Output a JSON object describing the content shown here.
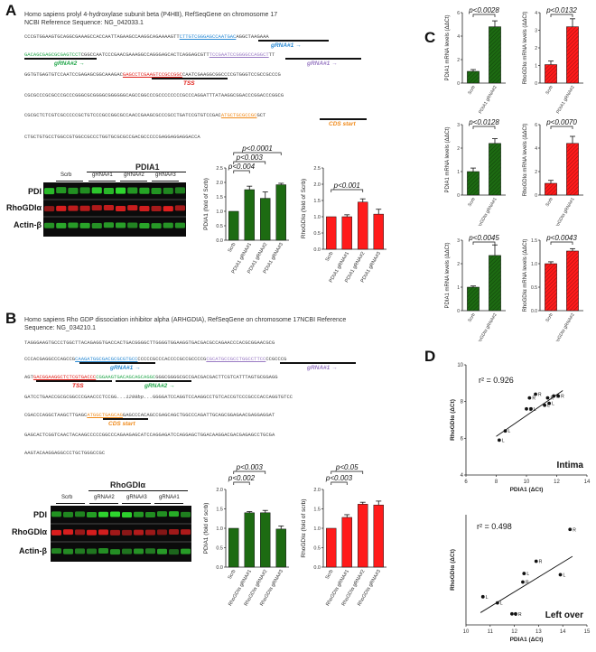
{
  "panels": {
    "A": "A",
    "B": "B",
    "C": "C",
    "D": "D"
  },
  "panelA": {
    "header1": "Homo sapiens prolyl 4-hydroxylase subunit beta (P4HB), RefSeqGene on chromosome 17",
    "header2": "NCBI Reference Sequence: NG_042033.1",
    "seq_lines": [
      "CCCGTGGAAGTGCAGGCGAAAGCCACCAATTAGAAGCCAAGGCAGAAAAGTT",
      "CTTGTCGGGAGCCAATGAC",
      "AGGCTAAGAAA",
      "GACAGCGAGCGCGAGTCCT",
      "CGGCCAATCCCGAACGAAAGGCCAGGGAGCACTCAGGAGCGTT",
      "TCCGAATCCGGGGCCAGGCT",
      "TT",
      "GGTGTGAGTGTCCAATCCGAGAGCGGCAAAGAC",
      "GAGCCTCGAAGTCCGCCGGC",
      "CAATCGAAGGCGGCCCCGTGGGTCCGCCGCCCG",
      "CGCGCCCGCGCCCGCCCGGGCGCGGGGCGGGGGGCAGCCGGCCCGCCCCCCCCGCCCAGGATTTATAAGGCGGACCCGGACCCGGCG",
      "CGCGCTCTCGTCGCCCCCGCTGTCCCGCCGGCGCCAACCGAAGCGCCCGCCTGATCCGTGTCCGAC",
      "ATGCTGCGCCGC",
      "GCT",
      "CTGCTGTGCCTGGCCGTGGCCGCCCTGGTGCGCGCCGACGCCCCCGAGGAGGAGGACCA"
    ],
    "gRNA1": "gRNA#1 →",
    "gRNA2": "gRNA#2 →",
    "gRNA1rev": "gRNA#1 →",
    "tss": "TSS",
    "cds": "CDS start",
    "blot_title": "PDIA1",
    "lanes": [
      "Scrb",
      "gRNA#1",
      "gRNA#2",
      "gRNA#3"
    ],
    "rows": [
      "PDI",
      "RhoGDIα",
      "Actin-β"
    ]
  },
  "panelB": {
    "header1": "Homo sapiens Rho GDP dissociation inhibitor alpha (ARHGDIA), RefSeqGene on chromosome 17NCBI Reference",
    "header2": "Sequence: NG_034210.1",
    "seq_lines": [
      "TAGGGAAGTGCCCTGGCTTACAGAGGTGACCACTGACGGGGCTTGGGGTGGAAGGTGACGACGCCAGAACCCACGCGGAACGCG",
      "CCCACGAGGCCCAGCCG",
      "CAAGATGGCGACGCGCGTGCC",
      "CCCCCGCCCACCCCGCCGCCCCG",
      "CGCATGCCGCCTGGCCTTCC",
      "CCGCCCG",
      "AGT",
      "GACGGAAGGCTCTCGTGACCC",
      "CGGAAGTGACAGCAGCAGGC",
      "GGGCGGGGCGCCGACGACGACTTCGTCATTTAGTGCGGAGG",
      "GATCCTGAACCGCGCGGCCCGAACCCTCCGG",
      "...1299bp...",
      "GGGGATCCAGGTCCAAGGCCTGTCACCGTCCCGCCCACCAGGTGTCC",
      "CGACCCAGGCTAAGCTTGAGC",
      "ATGGCTGAGCAG",
      "GAGCCCACAGCCGAGCAGCTGGCCCAGATTGCAGCGGAGAACGAGGAGGAT",
      "GAGCACTCGGTCAACTACAAGCCCCCGGCCCAGAAGAGCATCCAGGAGATCCAGGAGCTGGACAAGGACGACGAGAGCCTGCGA",
      "AAGTACAAGGAGGCCCTGCTGGGCCGC"
    ],
    "gRNA1": "gRNA#1 →",
    "gRNA2": "gRNA#2 →",
    "gRNA1rev": "gRNA#1 →",
    "tss": "TSS",
    "cds": "CDS start",
    "blot_title": "RhoGDIα",
    "lanes": [
      "Scrb",
      "gRNA#2",
      "gRNA#3",
      "gRNA#1"
    ],
    "rows": [
      "PDI",
      "RhoGDIα",
      "Actin-β"
    ]
  },
  "chart_data": [
    {
      "id": "A-left",
      "type": "bar",
      "categories": [
        "Scrb",
        "PDIA1 gRNA#1",
        "PDIA1 gRNA#2",
        "PDIA1 gRNA#3"
      ],
      "values": [
        1.0,
        1.75,
        1.45,
        1.92
      ],
      "errors": [
        0.0,
        0.12,
        0.22,
        0.05
      ],
      "ylabel": "PDIA1 (fold of Scrb)",
      "ylim": [
        0,
        2.5
      ],
      "yticks": [
        0.0,
        0.5,
        1.0,
        1.5,
        2.0,
        2.5
      ],
      "color": "#1d6b12",
      "annotations": [
        "p<0.0001",
        "p<0.003",
        "p<0.004"
      ]
    },
    {
      "id": "A-right",
      "type": "bar",
      "categories": [
        "Scrb",
        "PDIA1 gRNA#1",
        "PDIA1 gRNA#2",
        "PDIA1 gRNA#3"
      ],
      "values": [
        1.0,
        1.0,
        1.45,
        1.08
      ],
      "errors": [
        0.0,
        0.06,
        0.1,
        0.15
      ],
      "ylabel": "RhoGDIα (fold of Scrb)",
      "ylim": [
        0,
        2.5
      ],
      "yticks": [
        0.0,
        0.5,
        1.0,
        1.5,
        2.0,
        2.5
      ],
      "color": "#ff1b1b",
      "annotations": [
        "p<0.001"
      ]
    },
    {
      "id": "B-left",
      "type": "bar",
      "categories": [
        "Scrb",
        "RhoGDIα gRNA#1",
        "RhoGDIα gRNA#2",
        "RhoGDIα gRNA#3"
      ],
      "values": [
        1.0,
        1.4,
        1.4,
        0.98
      ],
      "errors": [
        0.0,
        0.03,
        0.06,
        0.08
      ],
      "ylabel": "PDIA1 (fold of scrb)",
      "ylim": [
        0,
        2.0
      ],
      "yticks": [
        0.0,
        0.5,
        1.0,
        1.5,
        2.0
      ],
      "color": "#1d6b12",
      "annotations": [
        "p<0.003",
        "p<0.002"
      ]
    },
    {
      "id": "B-right",
      "type": "bar",
      "categories": [
        "Scrb",
        "RhoGDIα gRNA#1",
        "RhoGDIα gRNA#2",
        "RhoGDIα gRNA#3"
      ],
      "values": [
        1.0,
        1.28,
        1.62,
        1.6
      ],
      "errors": [
        0.0,
        0.07,
        0.05,
        0.1
      ],
      "ylabel": "RhoGDIα (fold of scrb)",
      "ylim": [
        0,
        2.0
      ],
      "yticks": [
        0.0,
        0.5,
        1.0,
        1.5,
        2.0
      ],
      "color": "#ff1b1b",
      "annotations": [
        "p<0.05",
        "p<0.003"
      ]
    },
    {
      "id": "C-1",
      "type": "bar",
      "categories": [
        "Scrb",
        "PDIA1 gRNA#2"
      ],
      "values": [
        1.0,
        4.8
      ],
      "errors": [
        0.15,
        0.5
      ],
      "ylabel": "PDIA1 mRNA levels (ΔΔCt)",
      "ylim": [
        0,
        6
      ],
      "yticks": [
        0,
        2,
        4,
        6
      ],
      "color": "#1d6b12",
      "annotations": [
        "p<0.0028"
      ]
    },
    {
      "id": "C-2",
      "type": "bar",
      "categories": [
        "Scrb",
        "PDIA1 gRNA#2"
      ],
      "values": [
        1.05,
        3.2
      ],
      "errors": [
        0.2,
        0.45
      ],
      "ylabel": "RhoGDIα mRNA levels (ΔΔCt)",
      "ylim": [
        0,
        4
      ],
      "yticks": [
        0,
        1,
        2,
        3,
        4
      ],
      "color": "#ff1b1b",
      "annotations": [
        "p<0.0132"
      ]
    },
    {
      "id": "C-3",
      "type": "bar",
      "categories": [
        "Scrb",
        "RhoGDIα gRNA#1"
      ],
      "values": [
        1.0,
        2.2
      ],
      "errors": [
        0.15,
        0.2
      ],
      "ylabel": "PDIA1 mRNA levels (ΔΔCt)",
      "ylim": [
        0,
        3
      ],
      "yticks": [
        0,
        1,
        2,
        3
      ],
      "color": "#1d6b12",
      "annotations": [
        "p<0.0128"
      ]
    },
    {
      "id": "C-4",
      "type": "bar",
      "categories": [
        "Scrb",
        "RhoGDIα gRNA#1"
      ],
      "values": [
        1.0,
        4.4
      ],
      "errors": [
        0.25,
        0.6
      ],
      "ylabel": "RhoGDIα mRNA levels (ΔΔCt)",
      "ylim": [
        0,
        6
      ],
      "yticks": [
        0,
        2,
        4,
        6
      ],
      "color": "#ff1b1b",
      "annotations": [
        "p<0.0070"
      ]
    },
    {
      "id": "C-5",
      "type": "bar",
      "categories": [
        "Scrb",
        "RhoGDIα gRNA#2"
      ],
      "values": [
        1.0,
        2.35
      ],
      "errors": [
        0.05,
        0.45
      ],
      "ylabel": "PDIA1 mRNA levels (ΔΔCt)",
      "ylim": [
        0,
        3
      ],
      "yticks": [
        0,
        1,
        2,
        3
      ],
      "color": "#1d6b12",
      "annotations": [
        "p<0.0045"
      ]
    },
    {
      "id": "C-6",
      "type": "bar",
      "categories": [
        "Scrb",
        "RhoGDIα gRNA#2"
      ],
      "values": [
        1.0,
        1.27
      ],
      "errors": [
        0.04,
        0.05
      ],
      "ylabel": "RhoGDIα mRNA levels (ΔΔCt)",
      "ylim": [
        0,
        1.5
      ],
      "yticks": [
        0.0,
        0.5,
        1.0,
        1.5
      ],
      "color": "#ff1b1b",
      "annotations": [
        "p<0.0043"
      ]
    },
    {
      "id": "D-top",
      "type": "scatter",
      "xlabel": "PDIA1 (ΔCt)",
      "ylabel": "RhoGDIα (ΔCt)",
      "xlim": [
        6,
        14
      ],
      "ylim": [
        4,
        10
      ],
      "xticks": [
        6,
        8,
        10,
        12,
        14
      ],
      "yticks": [
        4,
        6,
        8,
        10
      ],
      "r2": "r² = 0.926",
      "label": "Intima",
      "points": [
        {
          "x": 8.2,
          "y": 5.9,
          "label": "L"
        },
        {
          "x": 8.6,
          "y": 6.4,
          "label": "L"
        },
        {
          "x": 10.0,
          "y": 7.6,
          "label": "L"
        },
        {
          "x": 10.3,
          "y": 7.6,
          "label": "L"
        },
        {
          "x": 10.2,
          "y": 8.2,
          "label": "R"
        },
        {
          "x": 10.6,
          "y": 8.4,
          "label": "R"
        },
        {
          "x": 11.2,
          "y": 7.8,
          "label": "L"
        },
        {
          "x": 11.5,
          "y": 7.9,
          "label": "L"
        },
        {
          "x": 11.4,
          "y": 8.2,
          "label": "R"
        },
        {
          "x": 11.8,
          "y": 8.3,
          "label": "R"
        },
        {
          "x": 12.1,
          "y": 8.3,
          "label": "R"
        }
      ],
      "fit": [
        [
          8.0,
          6.1
        ],
        [
          12.4,
          8.6
        ]
      ]
    },
    {
      "id": "D-bottom",
      "type": "scatter",
      "xlabel": "PDIA1 (ΔCt)",
      "ylabel": "RhoGDIα (ΔCt)",
      "xlim": [
        10,
        15
      ],
      "ylim": [
        6.0,
        10.5
      ],
      "xticks": [
        10,
        11,
        12,
        13,
        14,
        15
      ],
      "yticks": [],
      "r2": "r² = 0.498",
      "label": "Left over",
      "points": [
        {
          "x": 10.7,
          "y": 7.15,
          "label": "L"
        },
        {
          "x": 11.3,
          "y": 6.9,
          "label": "L"
        },
        {
          "x": 11.9,
          "y": 6.45,
          "label": "L"
        },
        {
          "x": 12.05,
          "y": 6.45,
          "label": "R"
        },
        {
          "x": 12.35,
          "y": 7.75,
          "label": "R"
        },
        {
          "x": 12.4,
          "y": 8.1,
          "label": "L"
        },
        {
          "x": 12.9,
          "y": 8.6,
          "label": "R"
        },
        {
          "x": 13.9,
          "y": 8.05,
          "label": "L"
        },
        {
          "x": 14.3,
          "y": 9.9,
          "label": "R"
        }
      ],
      "fit": [
        [
          10.6,
          6.5
        ],
        [
          14.4,
          8.8
        ]
      ]
    }
  ]
}
